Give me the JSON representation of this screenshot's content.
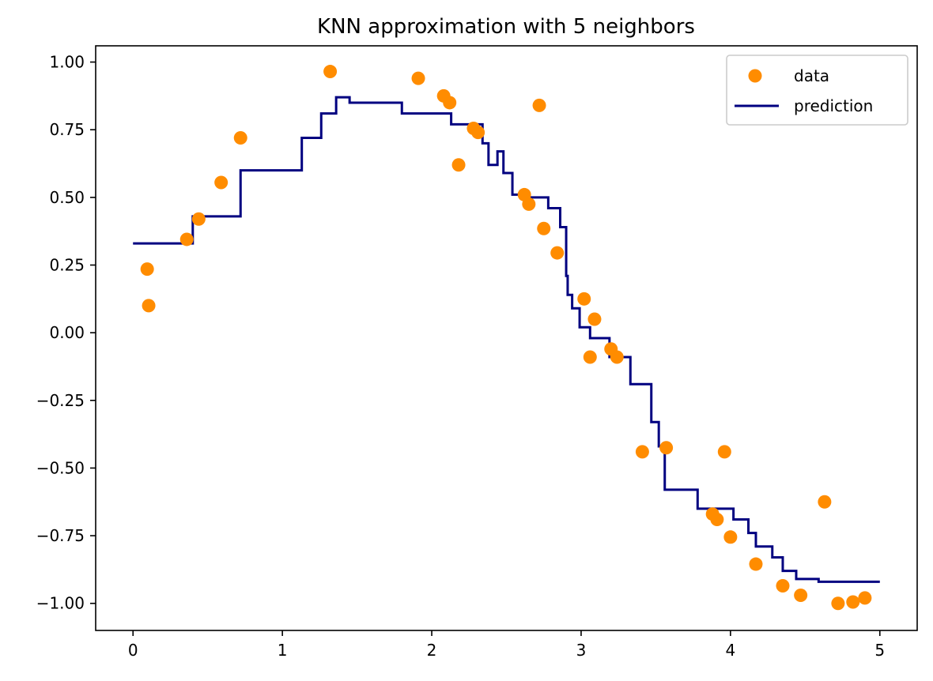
{
  "chart_data": {
    "type": "scatter",
    "title": "KNN approximation with 5 neighbors",
    "xlabel": "",
    "ylabel": "",
    "xlim": [
      -0.25,
      5.25
    ],
    "ylim": [
      -1.1,
      1.06
    ],
    "x_ticks": [
      0,
      1,
      2,
      3,
      4,
      5
    ],
    "x_tick_labels": [
      "0",
      "1",
      "2",
      "3",
      "4",
      "5"
    ],
    "y_ticks": [
      1.0,
      0.75,
      0.5,
      0.25,
      0.0,
      -0.25,
      -0.5,
      -0.75,
      -1.0
    ],
    "y_tick_labels": [
      "1.00",
      "0.75",
      "0.50",
      "0.25",
      "0.00",
      "−0.25",
      "−0.50",
      "−0.75",
      "−1.00"
    ],
    "grid": false,
    "legend_position": "top-right",
    "series": [
      {
        "name": "data",
        "kind": "scatter",
        "color": "#ff8c00",
        "points": [
          [
            0.095,
            0.235
          ],
          [
            0.105,
            0.1
          ],
          [
            0.36,
            0.345
          ],
          [
            0.44,
            0.42
          ],
          [
            0.59,
            0.555
          ],
          [
            0.72,
            0.72
          ],
          [
            1.32,
            0.965
          ],
          [
            1.91,
            0.94
          ],
          [
            2.08,
            0.875
          ],
          [
            2.12,
            0.85
          ],
          [
            2.18,
            0.62
          ],
          [
            2.28,
            0.755
          ],
          [
            2.31,
            0.74
          ],
          [
            2.62,
            0.51
          ],
          [
            2.65,
            0.475
          ],
          [
            2.72,
            0.84
          ],
          [
            2.75,
            0.385
          ],
          [
            2.84,
            0.295
          ],
          [
            3.02,
            0.125
          ],
          [
            3.06,
            -0.09
          ],
          [
            3.09,
            0.05
          ],
          [
            3.2,
            -0.06
          ],
          [
            3.24,
            -0.09
          ],
          [
            3.41,
            -0.44
          ],
          [
            3.57,
            -0.425
          ],
          [
            3.88,
            -0.67
          ],
          [
            3.91,
            -0.69
          ],
          [
            3.96,
            -0.44
          ],
          [
            4.0,
            -0.755
          ],
          [
            4.17,
            -0.855
          ],
          [
            4.35,
            -0.935
          ],
          [
            4.47,
            -0.97
          ],
          [
            4.63,
            -0.625
          ],
          [
            4.72,
            -1.0
          ],
          [
            4.82,
            -0.995
          ],
          [
            4.9,
            -0.98
          ]
        ]
      },
      {
        "name": "prediction",
        "kind": "step-line",
        "color": "#000080",
        "points": [
          [
            0.0,
            0.33
          ],
          [
            0.4,
            0.33
          ],
          [
            0.4,
            0.43
          ],
          [
            0.72,
            0.43
          ],
          [
            0.72,
            0.6
          ],
          [
            1.13,
            0.6
          ],
          [
            1.13,
            0.72
          ],
          [
            1.26,
            0.72
          ],
          [
            1.26,
            0.81
          ],
          [
            1.36,
            0.81
          ],
          [
            1.36,
            0.87
          ],
          [
            1.45,
            0.87
          ],
          [
            1.45,
            0.85
          ],
          [
            1.8,
            0.85
          ],
          [
            1.8,
            0.81
          ],
          [
            2.13,
            0.81
          ],
          [
            2.13,
            0.77
          ],
          [
            2.34,
            0.77
          ],
          [
            2.34,
            0.7
          ],
          [
            2.38,
            0.7
          ],
          [
            2.38,
            0.62
          ],
          [
            2.44,
            0.62
          ],
          [
            2.44,
            0.67
          ],
          [
            2.48,
            0.67
          ],
          [
            2.48,
            0.59
          ],
          [
            2.54,
            0.59
          ],
          [
            2.54,
            0.51
          ],
          [
            2.6,
            0.51
          ],
          [
            2.6,
            0.5
          ],
          [
            2.78,
            0.5
          ],
          [
            2.78,
            0.46
          ],
          [
            2.86,
            0.46
          ],
          [
            2.86,
            0.39
          ],
          [
            2.9,
            0.39
          ],
          [
            2.9,
            0.21
          ],
          [
            2.91,
            0.21
          ],
          [
            2.91,
            0.14
          ],
          [
            2.94,
            0.14
          ],
          [
            2.94,
            0.09
          ],
          [
            2.99,
            0.09
          ],
          [
            2.99,
            0.02
          ],
          [
            3.06,
            0.02
          ],
          [
            3.06,
            -0.02
          ],
          [
            3.19,
            -0.02
          ],
          [
            3.19,
            -0.09
          ],
          [
            3.33,
            -0.09
          ],
          [
            3.33,
            -0.19
          ],
          [
            3.47,
            -0.19
          ],
          [
            3.47,
            -0.33
          ],
          [
            3.52,
            -0.33
          ],
          [
            3.52,
            -0.42
          ],
          [
            3.56,
            -0.42
          ],
          [
            3.56,
            -0.58
          ],
          [
            3.78,
            -0.58
          ],
          [
            3.78,
            -0.65
          ],
          [
            4.02,
            -0.65
          ],
          [
            4.02,
            -0.69
          ],
          [
            4.12,
            -0.69
          ],
          [
            4.12,
            -0.74
          ],
          [
            4.17,
            -0.74
          ],
          [
            4.17,
            -0.79
          ],
          [
            4.28,
            -0.79
          ],
          [
            4.28,
            -0.83
          ],
          [
            4.35,
            -0.83
          ],
          [
            4.35,
            -0.88
          ],
          [
            4.44,
            -0.88
          ],
          [
            4.44,
            -0.91
          ],
          [
            4.59,
            -0.91
          ],
          [
            4.59,
            -0.92
          ],
          [
            5.0,
            -0.92
          ]
        ]
      }
    ]
  }
}
